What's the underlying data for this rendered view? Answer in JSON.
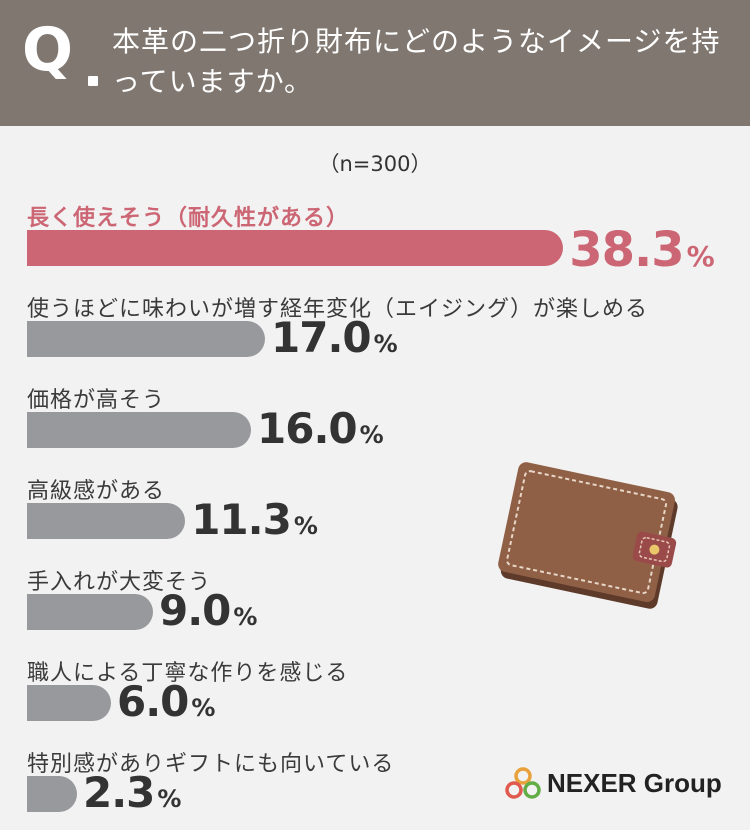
{
  "header": {
    "q_mark": "Q",
    "question": "本革の二つ折り財布にどのようなイメージを持っていますか。"
  },
  "sample_size": "（n=300）",
  "chart_data": {
    "type": "bar",
    "orientation": "horizontal",
    "unit": "%",
    "categories": [
      "長く使えそう（耐久性がある）",
      "使うほどに味わいが増す経年変化（エイジング）が楽しめる",
      "価格が高そう",
      "高級感がある",
      "手入れが大変そう",
      "職人による丁寧な作りを感じる",
      "特別感がありギフトにも向いている"
    ],
    "values": [
      38.3,
      17.0,
      16.0,
      11.3,
      9.0,
      6.0,
      2.3
    ],
    "value_labels": [
      "38.3",
      "17.0",
      "16.0",
      "11.3",
      "9.0",
      "6.0",
      "2.3"
    ],
    "highlight_index": 0,
    "colors": {
      "highlight": "#cc6674",
      "default": "#98999c"
    }
  },
  "logo": {
    "text": "NEXER Group"
  },
  "colors": {
    "header_bg": "#7f7770",
    "background": "#f2f2f2"
  }
}
